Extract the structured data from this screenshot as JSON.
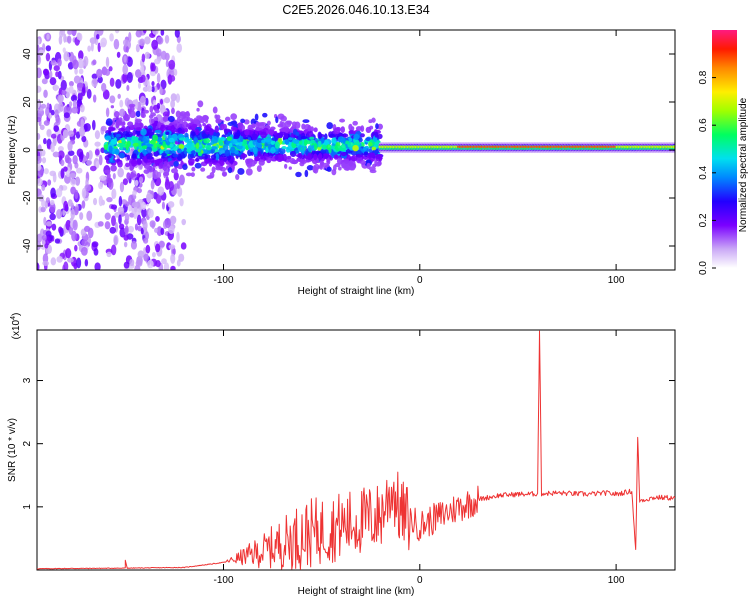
{
  "title": "C2E5.2026.046.10.13.E34",
  "chart_data": [
    {
      "type": "heatmap",
      "xlabel": "Height of straight line (km)",
      "ylabel": "Frequency (Hz)",
      "xlim": [
        -195,
        130
      ],
      "ylim": [
        -50,
        50
      ],
      "xticks": [
        -100,
        0,
        100
      ],
      "yticks": [
        -40,
        -20,
        0,
        20,
        40
      ],
      "colorbar": {
        "label": "Normalized spectral amplitude",
        "range": [
          0,
          1
        ],
        "ticks": [
          "0.0",
          "0.2",
          "0.4",
          "0.6",
          "0.8"
        ],
        "tick_values": [
          0,
          0.2,
          0.4,
          0.6,
          0.8
        ]
      },
      "features": [
        {
          "name": "diffuse scatter",
          "x_range": [
            -195,
            -120
          ],
          "y_range": [
            -50,
            50
          ],
          "amplitude": 0.1
        },
        {
          "name": "turbulent band",
          "x_range": [
            -160,
            -20
          ],
          "center_hz": 3,
          "width_hz": 8,
          "amplitude": 0.3
        },
        {
          "name": "steady tone",
          "x_range": [
            -20,
            130
          ],
          "center_hz": 1,
          "width_hz": 3,
          "amplitude": 0.9
        }
      ]
    },
    {
      "type": "line",
      "xlabel": "Height of straight line (km)",
      "ylabel": "SNR (10 * v/v)",
      "y_scale_label": "(x10",
      "y_scale_exp": "4",
      "xlim": [
        -195,
        130
      ],
      "ylim": [
        0,
        3.8
      ],
      "xticks": [
        -100,
        0,
        100
      ],
      "yticks": [
        1,
        2,
        3
      ],
      "color": "#ee3333",
      "series": [
        {
          "name": "SNR",
          "points": [
            [
              -195,
              0.02
            ],
            [
              -150,
              0.03
            ],
            [
              -150,
              0.15
            ],
            [
              -149,
              0.03
            ],
            [
              -120,
              0.04
            ],
            [
              -100,
              0.12
            ],
            [
              -80,
              0.3
            ],
            [
              -60,
              0.55
            ],
            [
              -40,
              0.7
            ],
            [
              -20,
              0.85
            ],
            [
              -14,
              1.3
            ],
            [
              -10,
              0.9
            ],
            [
              0,
              0.7
            ],
            [
              10,
              0.85
            ],
            [
              20,
              1.0
            ],
            [
              30,
              1.12
            ],
            [
              40,
              1.18
            ],
            [
              50,
              1.2
            ],
            [
              55,
              1.2
            ],
            [
              60,
              1.21
            ],
            [
              61,
              3.8
            ],
            [
              62,
              1.21
            ],
            [
              70,
              1.22
            ],
            [
              85,
              1.2
            ],
            [
              95,
              1.22
            ],
            [
              100,
              1.2
            ],
            [
              108,
              1.25
            ],
            [
              110,
              0.3
            ],
            [
              111,
              2.1
            ],
            [
              112,
              1.1
            ],
            [
              120,
              1.15
            ],
            [
              130,
              1.14
            ]
          ]
        }
      ]
    }
  ]
}
